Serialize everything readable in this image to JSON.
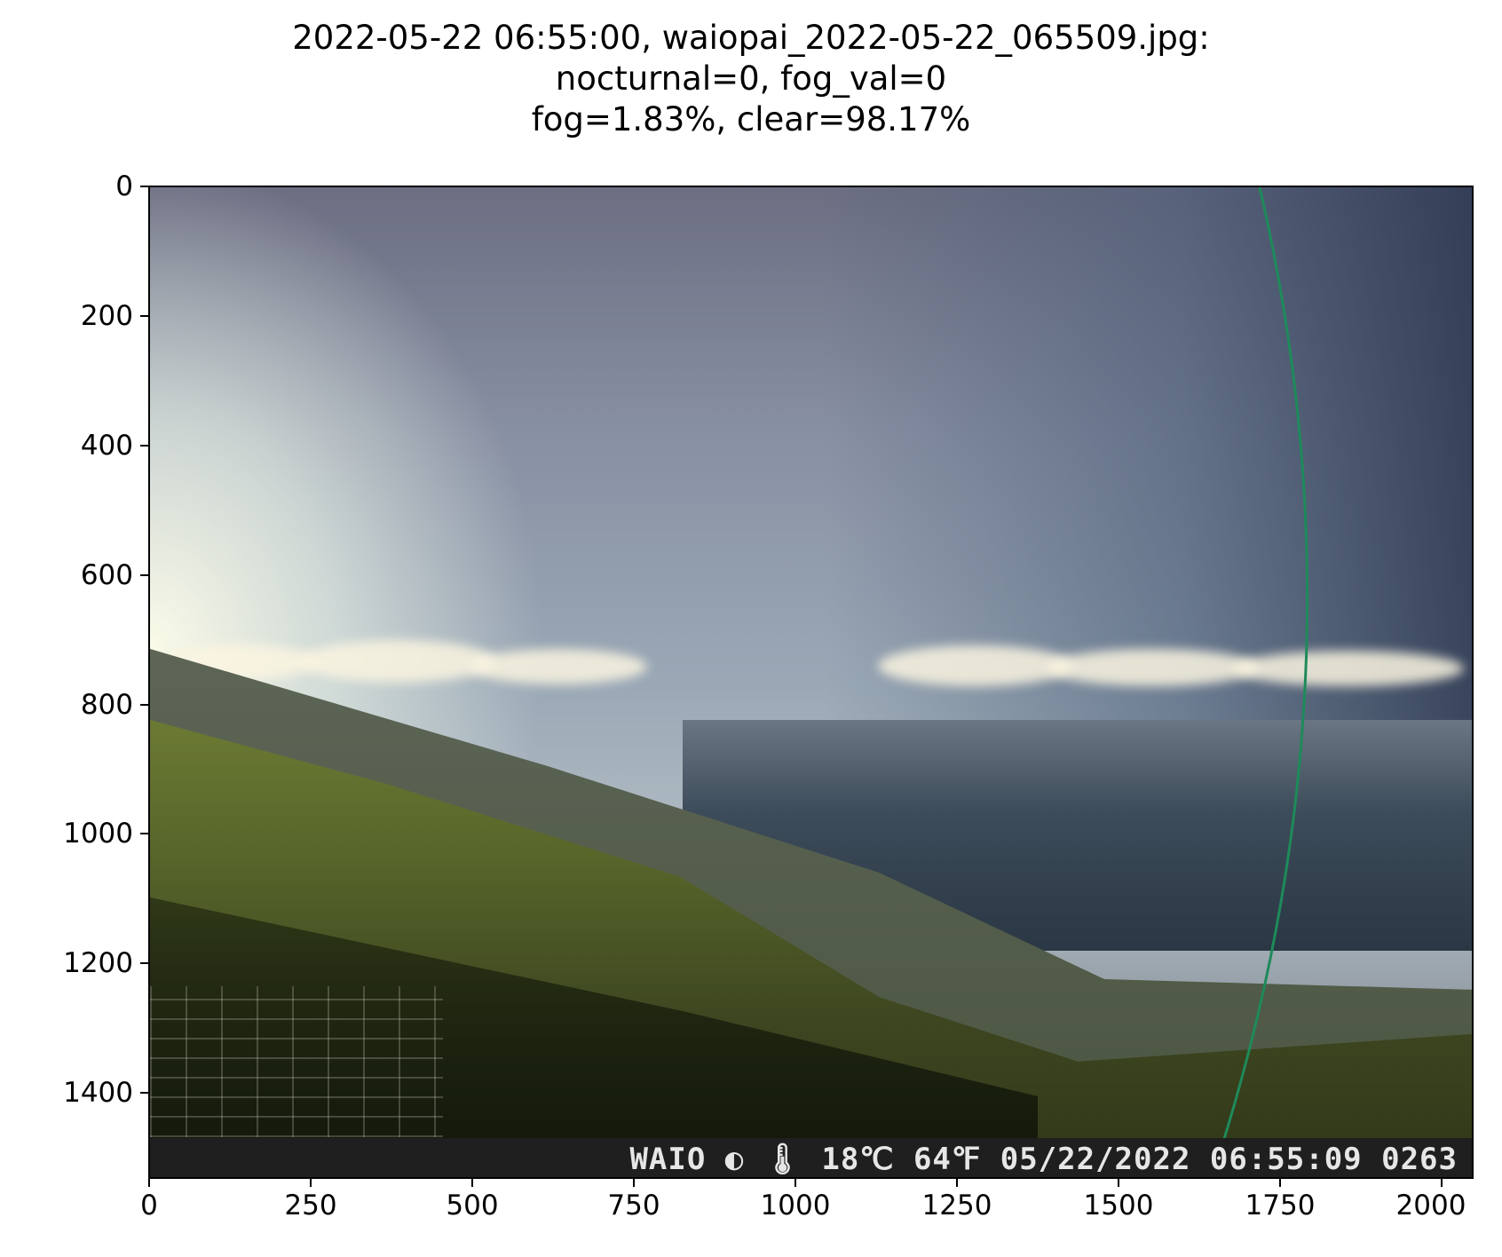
{
  "title": {
    "line1": "2022-05-22 06:55:00, waiopai_2022-05-22_065509.jpg:",
    "line2": "nocturnal=0, fog_val=0",
    "line3": "fog=1.83%, clear=98.17%"
  },
  "camera_overlay": {
    "text": "WAIO ◐ 🌡 18℃  64℉ 05/22/2022 06:55:09 0263"
  },
  "axes": {
    "x_ticks": [
      "0",
      "250",
      "500",
      "750",
      "1000",
      "1250",
      "1500",
      "1750",
      "2000"
    ],
    "y_ticks": [
      "0",
      "200",
      "400",
      "600",
      "800",
      "1000",
      "1200",
      "1400"
    ]
  },
  "colors": {
    "sky_bright": "#fffbe6",
    "sky_dark": "#2e3a52",
    "grass": "#6b7a33",
    "wire": "#1e8a5a",
    "stamp_bg": "#1f1f1f"
  }
}
